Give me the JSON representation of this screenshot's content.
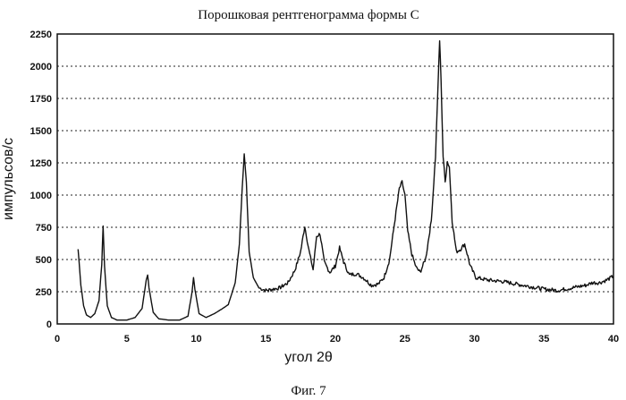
{
  "chart_data": {
    "type": "line",
    "title": "Порошковая рентгенограмма формы С",
    "caption": "Фиг. 7",
    "xlabel": "угол 2θ",
    "ylabel": "импульсов/с",
    "xlim": [
      0,
      40
    ],
    "ylim": [
      0,
      2250
    ],
    "xticks": [
      0,
      5,
      10,
      15,
      20,
      25,
      30,
      35,
      40
    ],
    "yticks": [
      0,
      250,
      500,
      750,
      1000,
      1250,
      1500,
      1750,
      2000,
      2250
    ],
    "grid": "horizontal-dotted",
    "series": [
      {
        "color": "#111111",
        "x": [
          1.5,
          1.7,
          1.9,
          2.1,
          2.4,
          2.7,
          3.0,
          3.2,
          3.3,
          3.4,
          3.6,
          3.9,
          4.3,
          5.0,
          5.6,
          6.1,
          6.4,
          6.5,
          6.6,
          6.9,
          7.3,
          8.0,
          8.8,
          9.4,
          9.7,
          9.8,
          9.9,
          10.2,
          10.7,
          11.3,
          11.9,
          12.3,
          12.8,
          13.1,
          13.3,
          13.45,
          13.6,
          13.8,
          14.1,
          14.5,
          15.0,
          15.5,
          16.0,
          16.6,
          17.1,
          17.5,
          17.8,
          18.1,
          18.4,
          18.65,
          18.9,
          19.2,
          19.6,
          20.0,
          20.3,
          20.6,
          21.0,
          21.5,
          22.0,
          22.6,
          23.1,
          23.5,
          23.9,
          24.3,
          24.6,
          24.8,
          25.0,
          25.2,
          25.5,
          25.8,
          26.1,
          26.5,
          26.9,
          27.2,
          27.4,
          27.5,
          27.6,
          27.75,
          27.9,
          28.05,
          28.2,
          28.4,
          28.7,
          29.0,
          29.3,
          29.7,
          30.1,
          31.0,
          32.0,
          33.0,
          34.0,
          35.0,
          36.0,
          37.0,
          38.0,
          38.5,
          39.0,
          39.5,
          40.0
        ],
        "y": [
          580,
          300,
          140,
          70,
          50,
          80,
          180,
          460,
          760,
          450,
          140,
          50,
          30,
          30,
          50,
          120,
          340,
          380,
          280,
          90,
          40,
          30,
          30,
          60,
          250,
          360,
          270,
          80,
          50,
          80,
          120,
          150,
          320,
          620,
          1050,
          1320,
          1100,
          560,
          360,
          280,
          260,
          270,
          280,
          320,
          420,
          560,
          760,
          570,
          420,
          680,
          700,
          480,
          400,
          450,
          590,
          480,
          380,
          390,
          360,
          300,
          310,
          360,
          500,
          820,
          1050,
          1100,
          1000,
          720,
          540,
          440,
          400,
          510,
          800,
          1300,
          1900,
          2200,
          1900,
          1300,
          1100,
          1260,
          1220,
          800,
          560,
          580,
          620,
          450,
          360,
          340,
          330,
          310,
          290,
          270,
          260,
          280,
          300,
          320,
          320,
          340,
          370
        ]
      }
    ]
  }
}
